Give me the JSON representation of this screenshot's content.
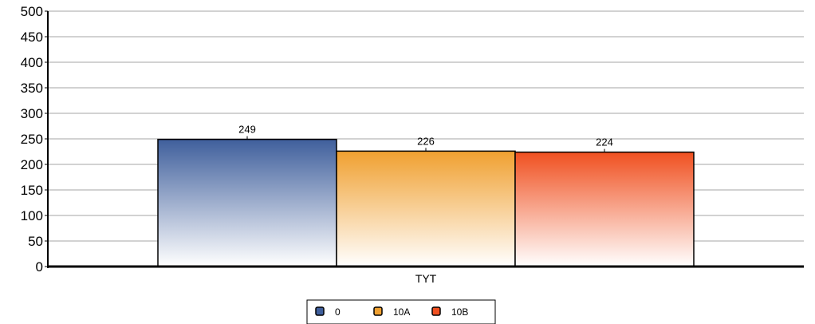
{
  "chart_data": {
    "type": "bar",
    "title": "",
    "categories": [
      "TYT"
    ],
    "series": [
      {
        "name": "0",
        "values": [
          249
        ],
        "color": "#3f5f9c"
      },
      {
        "name": "10A",
        "values": [
          226
        ],
        "color": "#f0a030"
      },
      {
        "name": "10B",
        "values": [
          224
        ],
        "color": "#f05020"
      }
    ],
    "ylim": [
      0,
      500
    ],
    "yticks": [
      0,
      50,
      100,
      150,
      200,
      250,
      300,
      350,
      400,
      450,
      500
    ],
    "grid": true,
    "legend": "bottom-center",
    "xlabel": "",
    "ylabel": ""
  }
}
